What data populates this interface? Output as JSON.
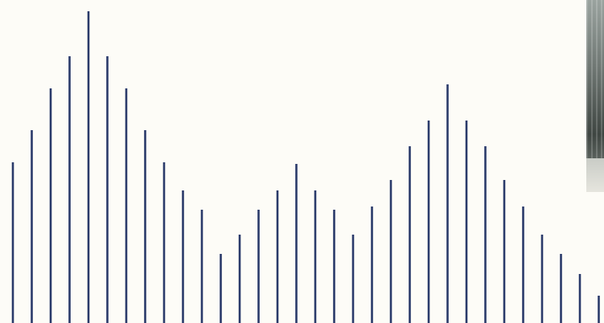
{
  "chart_data": {
    "type": "bar",
    "style": "vertical-line-stems",
    "bar_color": "#2a3a6a",
    "background_color": "#fdfcf7",
    "values": [
      200,
      240,
      292,
      332,
      388,
      332,
      292,
      240,
      200,
      165,
      141,
      86,
      110,
      141,
      165,
      198,
      165,
      141,
      110,
      145,
      178,
      220,
      252,
      297,
      252,
      220,
      178,
      145,
      110,
      86,
      61,
      34
    ],
    "ylim": [
      0,
      402
    ],
    "grid": false,
    "legend": "none"
  },
  "photo": {
    "icon": "building-photo"
  }
}
